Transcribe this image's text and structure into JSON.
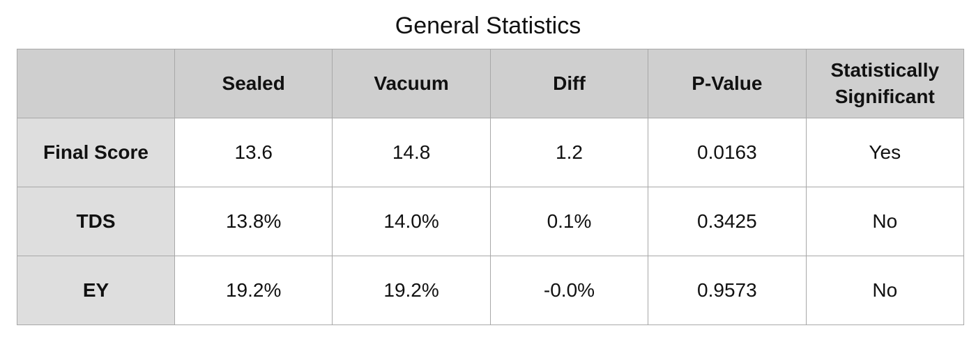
{
  "chart_data": {
    "type": "table",
    "title": "General Statistics",
    "columns": [
      "",
      "Sealed",
      "Vacuum",
      "Diff",
      "P-Value",
      "Statistically Significant"
    ],
    "rows": [
      {
        "label": "Final Score",
        "cells": [
          "13.6",
          "14.8",
          "1.2",
          "0.0163",
          "Yes"
        ]
      },
      {
        "label": "TDS",
        "cells": [
          "13.8%",
          "14.0%",
          "0.1%",
          "0.3425",
          "No"
        ]
      },
      {
        "label": "EY",
        "cells": [
          "19.2%",
          "19.2%",
          "-0.0%",
          "0.9573",
          "No"
        ]
      }
    ]
  },
  "colors": {
    "header_bg": "#cfcfcf",
    "row_label_bg": "#dedede",
    "border": "#a8a8a8"
  }
}
